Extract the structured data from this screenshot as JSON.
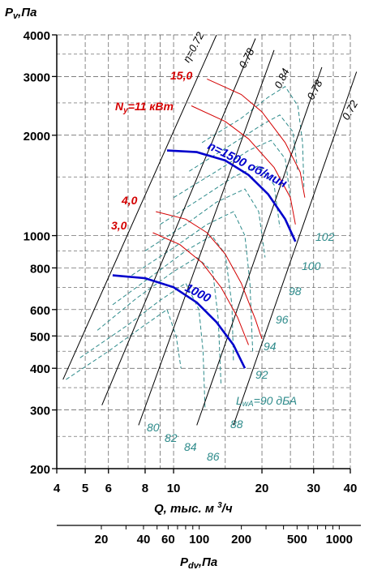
{
  "colors": {
    "grid": "#555555",
    "axis": "#000000",
    "power": "#d40000",
    "speed": "#0000cc",
    "noise": "#2e8b8b",
    "efficiency": "#000000"
  },
  "chart_data": {
    "type": "line",
    "x_scale": "log",
    "y_scale": "log",
    "grid": true,
    "ylabel": "Pv,Па",
    "xlabel": "Q, тыс. м³/ч",
    "x2label": "Pdv,Па",
    "xlim": [
      4,
      40
    ],
    "ylim": [
      200,
      4000
    ],
    "x_ticks": [
      4,
      5,
      6,
      8,
      10,
      20,
      30,
      40
    ],
    "x_tick_labels": [
      "4",
      "5",
      "6",
      "8",
      "10",
      "20",
      "30",
      "40"
    ],
    "y_ticks": [
      200,
      300,
      400,
      500,
      600,
      800,
      1000,
      2000,
      3000,
      4000
    ],
    "y_tick_labels": [
      "200",
      "300",
      "400",
      "500",
      "600",
      "800",
      "1000",
      "2000",
      "3000",
      "4000"
    ],
    "x2_ticks": [
      20,
      40,
      60,
      100,
      200,
      500,
      1000
    ],
    "x2_tick_labels": [
      "20",
      "40",
      "60",
      "100",
      "200",
      "500",
      "1000"
    ],
    "speed_curves": [
      {
        "label": "n=1500 об/мин",
        "points": [
          [
            9.5,
            1800
          ],
          [
            12,
            1780
          ],
          [
            15,
            1680
          ],
          [
            18,
            1520
          ],
          [
            21,
            1330
          ],
          [
            24,
            1120
          ],
          [
            26,
            960
          ]
        ]
      },
      {
        "label": "1000",
        "points": [
          [
            6.2,
            760
          ],
          [
            8,
            745
          ],
          [
            10,
            700
          ],
          [
            12,
            630
          ],
          [
            14,
            550
          ],
          [
            16,
            470
          ],
          [
            17.5,
            400
          ]
        ]
      }
    ],
    "power_curves": [
      {
        "label": "15,0",
        "points": [
          [
            13,
            2950
          ],
          [
            17,
            2650
          ],
          [
            20,
            2350
          ],
          [
            24,
            1900
          ],
          [
            27,
            1550
          ],
          [
            28,
            1300
          ]
        ]
      },
      {
        "label": "Nу=11 кВт",
        "points": [
          [
            11.5,
            2450
          ],
          [
            15,
            2200
          ],
          [
            18,
            1950
          ],
          [
            22,
            1600
          ],
          [
            25,
            1300
          ],
          [
            26,
            1080
          ]
        ]
      },
      {
        "label": "4,0",
        "points": [
          [
            8.7,
            1180
          ],
          [
            11,
            1120
          ],
          [
            13,
            1020
          ],
          [
            15,
            880
          ],
          [
            17,
            720
          ],
          [
            19,
            560
          ],
          [
            20,
            490
          ]
        ]
      },
      {
        "label": "3,0",
        "points": [
          [
            8.5,
            1020
          ],
          [
            10.5,
            940
          ],
          [
            12.5,
            830
          ],
          [
            14.5,
            700
          ],
          [
            16.5,
            570
          ],
          [
            18,
            470
          ]
        ]
      }
    ],
    "efficiency_lines": [
      {
        "label": "η=0.72",
        "points": [
          [
            4.2,
            370
          ],
          [
            14,
            4000
          ]
        ]
      },
      {
        "label": "0.78",
        "points": [
          [
            5.7,
            310
          ],
          [
            19,
            3900
          ]
        ]
      },
      {
        "label": "0.84",
        "points": [
          [
            7.6,
            270
          ],
          [
            22,
            3600
          ]
        ]
      },
      {
        "label": "0.78",
        "points": [
          [
            12,
            270
          ],
          [
            32,
            3200
          ]
        ]
      },
      {
        "label": "0.72",
        "points": [
          [
            16,
            270
          ],
          [
            42,
            3100
          ]
        ]
      }
    ],
    "noise_labels": [
      "80",
      "82",
      "84",
      "86",
      "88",
      "92",
      "94",
      "96",
      "98",
      "100",
      "102",
      "LwA=90 дБА"
    ]
  }
}
